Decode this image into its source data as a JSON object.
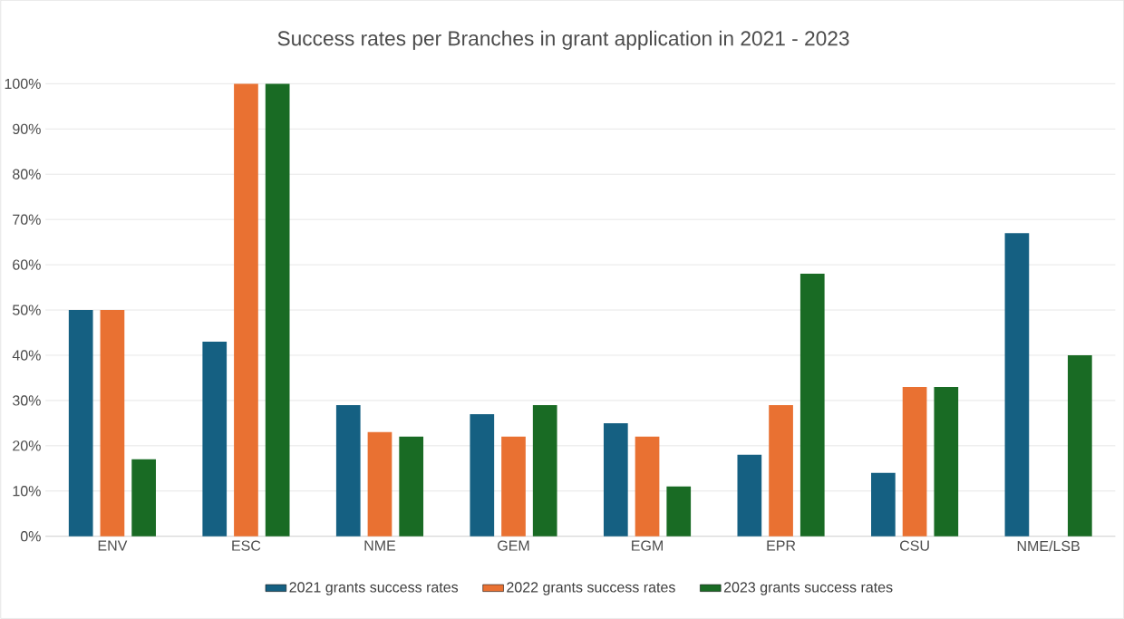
{
  "chart_data": {
    "type": "bar",
    "title": "Success rates per Branches in grant application in 2021 - 2023",
    "categories": [
      "ENV",
      "ESC",
      "NME",
      "GEM",
      "EGM",
      "EPR",
      "CSU",
      "NME/LSB"
    ],
    "series": [
      {
        "name": "2021 grants success rates",
        "color": "#156082",
        "values": [
          50,
          43,
          29,
          27,
          25,
          18,
          14,
          67
        ]
      },
      {
        "name": "2022 grants success rates",
        "color": "#e97132",
        "values": [
          50,
          100,
          23,
          22,
          22,
          29,
          33,
          null
        ]
      },
      {
        "name": "2023 grants success rates",
        "color": "#196b24",
        "values": [
          17,
          100,
          22,
          29,
          11,
          58,
          33,
          40
        ]
      }
    ],
    "ylim": [
      0,
      100
    ],
    "yticks": [
      {
        "value": 0,
        "label": "0%"
      },
      {
        "value": 10,
        "label": "10%"
      },
      {
        "value": 20,
        "label": "20%"
      },
      {
        "value": 30,
        "label": "30%"
      },
      {
        "value": 40,
        "label": "40%"
      },
      {
        "value": 50,
        "label": "50%"
      },
      {
        "value": 60,
        "label": "60%"
      },
      {
        "value": 70,
        "label": "70%"
      },
      {
        "value": 80,
        "label": "80%"
      },
      {
        "value": 90,
        "label": "90%"
      },
      {
        "value": 100,
        "label": "100%"
      }
    ],
    "grid": "y",
    "legend": "bottom"
  }
}
